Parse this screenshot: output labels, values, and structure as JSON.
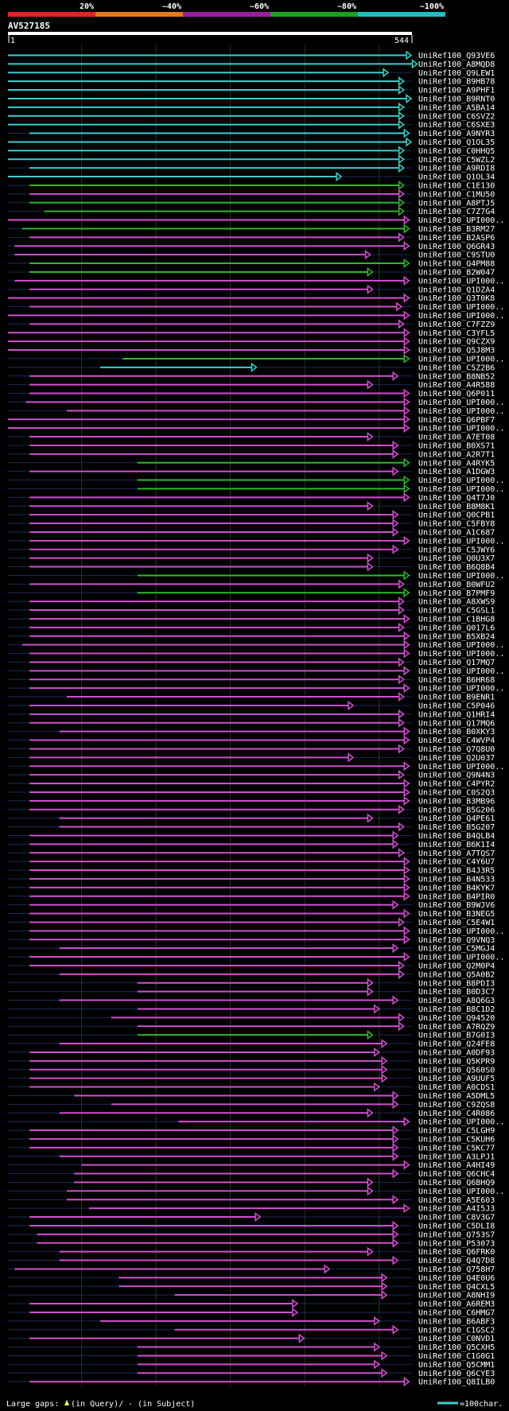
{
  "chart_data": {
    "type": "bar",
    "title": "AV527185",
    "query_length_label": "544",
    "axis_start_label": "1",
    "identity_legend": [
      {
        "label": "20%",
        "color": "#e8202a"
      },
      {
        "label": "~40%",
        "color": "#e8781e"
      },
      {
        "label": "~60%",
        "color": "#9a1e9a"
      },
      {
        "label": "~80%",
        "color": "#1ea01e"
      },
      {
        "label": "~100%",
        "color": "#1ec0c0"
      }
    ],
    "footer": {
      "gaps_label": "Large gaps:",
      "query_label": "(in Query)/",
      "subject_label": "- (in Subject)",
      "scale_label": "=100char."
    },
    "arrow_colors": {
      "magenta": "#d24fd2",
      "green": "#2db82d",
      "cyan": "#3ccfcf"
    },
    "xlim": [
      1,
      544
    ],
    "hits": [
      {
        "name": "UniRef100_Q93VE6",
        "start": 1,
        "end": 543,
        "color": "cyan"
      },
      {
        "name": "UniRef100_A8MQD8",
        "start": 1,
        "end": 551,
        "color": "cyan"
      },
      {
        "name": "UniRef100_Q9LEW1",
        "start": 1,
        "end": 512,
        "color": "cyan"
      },
      {
        "name": "UniRef100_B9HB78",
        "start": 1,
        "end": 533,
        "color": "cyan"
      },
      {
        "name": "UniRef100_A9PHF1",
        "start": 1,
        "end": 533,
        "color": "cyan"
      },
      {
        "name": "UniRef100_B9RNT0",
        "start": 1,
        "end": 543,
        "color": "cyan"
      },
      {
        "name": "UniRef100_A5BA14",
        "start": 1,
        "end": 533,
        "color": "cyan"
      },
      {
        "name": "UniRef100_C6SVZ2",
        "start": 1,
        "end": 533,
        "color": "cyan"
      },
      {
        "name": "UniRef100_C6SXE3",
        "start": 1,
        "end": 533,
        "color": "cyan"
      },
      {
        "name": "UniRef100_A9NYR3",
        "start": 30,
        "end": 540,
        "color": "cyan"
      },
      {
        "name": "UniRef100_Q1OL35",
        "start": 1,
        "end": 543,
        "color": "cyan"
      },
      {
        "name": "UniRef100_C0HHQ5",
        "start": 1,
        "end": 533,
        "color": "cyan"
      },
      {
        "name": "UniRef100_C5WZL2",
        "start": 1,
        "end": 533,
        "color": "cyan"
      },
      {
        "name": "UniRef100_A9RDI8",
        "start": 30,
        "end": 533,
        "color": "cyan"
      },
      {
        "name": "UniRef100_Q1OL34",
        "start": 1,
        "end": 449,
        "color": "cyan"
      },
      {
        "name": "UniRef100_C1E130",
        "start": 30,
        "end": 533,
        "color": "green"
      },
      {
        "name": "UniRef100_C1MU50",
        "start": 30,
        "end": 533,
        "color": "magenta"
      },
      {
        "name": "UniRef100_A8PTJ5",
        "start": 30,
        "end": 533,
        "color": "green"
      },
      {
        "name": "UniRef100_C7Z7G4",
        "start": 50,
        "end": 533,
        "color": "green"
      },
      {
        "name": "UniRef100_UPI000..",
        "start": 1,
        "end": 540,
        "color": "magenta"
      },
      {
        "name": "UniRef100_B3RM27",
        "start": 20,
        "end": 540,
        "color": "green"
      },
      {
        "name": "UniRef100_B2ASP6",
        "start": 30,
        "end": 533,
        "color": "magenta"
      },
      {
        "name": "UniRef100_Q6GR43",
        "start": 10,
        "end": 540,
        "color": "magenta"
      },
      {
        "name": "UniRef100_C9STU0",
        "start": 10,
        "end": 488,
        "color": "magenta"
      },
      {
        "name": "UniRef100_Q4PM88",
        "start": 30,
        "end": 540,
        "color": "green"
      },
      {
        "name": "UniRef100_B2W047",
        "start": 30,
        "end": 491,
        "color": "green"
      },
      {
        "name": "UniRef100_UPI000..",
        "start": 10,
        "end": 540,
        "color": "magenta"
      },
      {
        "name": "UniRef100_Q1DZA4",
        "start": 30,
        "end": 491,
        "color": "magenta"
      },
      {
        "name": "UniRef100_Q3T0K8",
        "start": 1,
        "end": 540,
        "color": "magenta"
      },
      {
        "name": "UniRef100_UPI000..",
        "start": 30,
        "end": 530,
        "color": "magenta"
      },
      {
        "name": "UniRef100_UPI000..",
        "start": 1,
        "end": 540,
        "color": "magenta"
      },
      {
        "name": "UniRef100_C7FZZ9",
        "start": 30,
        "end": 533,
        "color": "magenta"
      },
      {
        "name": "UniRef100_C3YFL5",
        "start": 1,
        "end": 540,
        "color": "magenta"
      },
      {
        "name": "UniRef100_Q9CZX9",
        "start": 1,
        "end": 540,
        "color": "magenta"
      },
      {
        "name": "UniRef100_Q5J8M3",
        "start": 1,
        "end": 540,
        "color": "magenta"
      },
      {
        "name": "UniRef100_UPI000..",
        "start": 155,
        "end": 540,
        "color": "green"
      },
      {
        "name": "UniRef100_C5Z2B6",
        "start": 125,
        "end": 335,
        "color": "cyan"
      },
      {
        "name": "UniRef100_B8NB52",
        "start": 30,
        "end": 525,
        "color": "magenta"
      },
      {
        "name": "UniRef100_A4R588",
        "start": 30,
        "end": 491,
        "color": "magenta"
      },
      {
        "name": "UniRef100_Q6P011",
        "start": 30,
        "end": 540,
        "color": "magenta"
      },
      {
        "name": "UniRef100_UPI000..",
        "start": 25,
        "end": 540,
        "color": "magenta"
      },
      {
        "name": "UniRef100_UPI000..",
        "start": 80,
        "end": 540,
        "color": "magenta"
      },
      {
        "name": "UniRef100_Q6PBF7",
        "start": 1,
        "end": 540,
        "color": "magenta"
      },
      {
        "name": "UniRef100_UPI000..",
        "start": 1,
        "end": 540,
        "color": "magenta"
      },
      {
        "name": "UniRef100_A7ET08",
        "start": 30,
        "end": 491,
        "color": "magenta"
      },
      {
        "name": "UniRef100_B0XS71",
        "start": 30,
        "end": 525,
        "color": "magenta"
      },
      {
        "name": "UniRef100_A2R7T1",
        "start": 30,
        "end": 525,
        "color": "magenta"
      },
      {
        "name": "UniRef100_A4RYK5",
        "start": 175,
        "end": 540,
        "color": "green"
      },
      {
        "name": "UniRef100_A1DGW3",
        "start": 30,
        "end": 525,
        "color": "magenta"
      },
      {
        "name": "UniRef100_UPI000..",
        "start": 175,
        "end": 540,
        "color": "green"
      },
      {
        "name": "UniRef100_UPI000..",
        "start": 175,
        "end": 540,
        "color": "green"
      },
      {
        "name": "UniRef100_Q4T7J0",
        "start": 30,
        "end": 540,
        "color": "magenta"
      },
      {
        "name": "UniRef100_B8M8K1",
        "start": 30,
        "end": 491,
        "color": "magenta"
      },
      {
        "name": "UniRef100_Q0CPB1",
        "start": 30,
        "end": 525,
        "color": "magenta"
      },
      {
        "name": "UniRef100_C5FBY8",
        "start": 30,
        "end": 525,
        "color": "magenta"
      },
      {
        "name": "UniRef100_A1C687",
        "start": 30,
        "end": 525,
        "color": "magenta"
      },
      {
        "name": "UniRef100_UPI000..",
        "start": 30,
        "end": 540,
        "color": "magenta"
      },
      {
        "name": "UniRef100_C5JWY6",
        "start": 30,
        "end": 525,
        "color": "magenta"
      },
      {
        "name": "UniRef100_Q0U3X7",
        "start": 30,
        "end": 491,
        "color": "magenta"
      },
      {
        "name": "UniRef100_B6Q8B4",
        "start": 30,
        "end": 491,
        "color": "magenta"
      },
      {
        "name": "UniRef100_UPI000..",
        "start": 175,
        "end": 540,
        "color": "green"
      },
      {
        "name": "UniRef100_B0WFU2",
        "start": 30,
        "end": 533,
        "color": "magenta"
      },
      {
        "name": "UniRef100_B7PMF9",
        "start": 175,
        "end": 540,
        "color": "green"
      },
      {
        "name": "UniRef100_A8XWS9",
        "start": 30,
        "end": 533,
        "color": "magenta"
      },
      {
        "name": "UniRef100_C5GSL1",
        "start": 30,
        "end": 533,
        "color": "magenta"
      },
      {
        "name": "UniRef100_C1BHG8",
        "start": 30,
        "end": 540,
        "color": "magenta"
      },
      {
        "name": "UniRef100_Q017L6",
        "start": 30,
        "end": 533,
        "color": "magenta"
      },
      {
        "name": "UniRef100_B5XB24",
        "start": 30,
        "end": 540,
        "color": "magenta"
      },
      {
        "name": "UniRef100_UPI000..",
        "start": 20,
        "end": 540,
        "color": "magenta"
      },
      {
        "name": "UniRef100_UPI000..",
        "start": 30,
        "end": 540,
        "color": "magenta"
      },
      {
        "name": "UniRef100_Q17MQ7",
        "start": 30,
        "end": 533,
        "color": "magenta"
      },
      {
        "name": "UniRef100_UPI000..",
        "start": 30,
        "end": 540,
        "color": "magenta"
      },
      {
        "name": "UniRef100_B6HR68",
        "start": 30,
        "end": 533,
        "color": "magenta"
      },
      {
        "name": "UniRef100_UPI000..",
        "start": 30,
        "end": 540,
        "color": "magenta"
      },
      {
        "name": "UniRef100_B9ENR1",
        "start": 80,
        "end": 533,
        "color": "magenta"
      },
      {
        "name": "UniRef100_C5P046",
        "start": 30,
        "end": 465,
        "color": "magenta"
      },
      {
        "name": "UniRef100_Q1HRI4",
        "start": 30,
        "end": 533,
        "color": "magenta"
      },
      {
        "name": "UniRef100_Q17MQ6",
        "start": 30,
        "end": 533,
        "color": "magenta"
      },
      {
        "name": "UniRef100_B0XKY3",
        "start": 70,
        "end": 540,
        "color": "magenta"
      },
      {
        "name": "UniRef100_C4WVP4",
        "start": 30,
        "end": 540,
        "color": "magenta"
      },
      {
        "name": "UniRef100_Q7Q8U0",
        "start": 30,
        "end": 533,
        "color": "magenta"
      },
      {
        "name": "UniRef100_Q2U037",
        "start": 30,
        "end": 465,
        "color": "magenta"
      },
      {
        "name": "UniRef100_UPI000..",
        "start": 30,
        "end": 540,
        "color": "magenta"
      },
      {
        "name": "UniRef100_Q9N4N3",
        "start": 30,
        "end": 533,
        "color": "magenta"
      },
      {
        "name": "UniRef100_C4PYR2",
        "start": 30,
        "end": 540,
        "color": "magenta"
      },
      {
        "name": "UniRef100_C0S2Q3",
        "start": 30,
        "end": 540,
        "color": "magenta"
      },
      {
        "name": "UniRef100_B3MB96",
        "start": 30,
        "end": 540,
        "color": "magenta"
      },
      {
        "name": "UniRef100_B5G206",
        "start": 30,
        "end": 533,
        "color": "magenta"
      },
      {
        "name": "UniRef100_Q4PE61",
        "start": 70,
        "end": 491,
        "color": "magenta"
      },
      {
        "name": "UniRef100_B5G207",
        "start": 70,
        "end": 533,
        "color": "magenta"
      },
      {
        "name": "UniRef100_B4QLB4",
        "start": 30,
        "end": 525,
        "color": "magenta"
      },
      {
        "name": "UniRef100_B6K1I4",
        "start": 30,
        "end": 525,
        "color": "magenta"
      },
      {
        "name": "UniRef100_A7TQS7",
        "start": 30,
        "end": 533,
        "color": "magenta"
      },
      {
        "name": "UniRef100_C4Y6U7",
        "start": 30,
        "end": 540,
        "color": "magenta"
      },
      {
        "name": "UniRef100_B4J3R5",
        "start": 30,
        "end": 540,
        "color": "magenta"
      },
      {
        "name": "UniRef100_B4N533",
        "start": 30,
        "end": 540,
        "color": "magenta"
      },
      {
        "name": "UniRef100_B4KYK7",
        "start": 30,
        "end": 540,
        "color": "magenta"
      },
      {
        "name": "UniRef100_B4PIR0",
        "start": 30,
        "end": 540,
        "color": "magenta"
      },
      {
        "name": "UniRef100_B9WJV6",
        "start": 30,
        "end": 525,
        "color": "magenta"
      },
      {
        "name": "UniRef100_B3NEG5",
        "start": 30,
        "end": 540,
        "color": "magenta"
      },
      {
        "name": "UniRef100_C5E4W1",
        "start": 30,
        "end": 533,
        "color": "magenta"
      },
      {
        "name": "UniRef100_UPI000..",
        "start": 30,
        "end": 540,
        "color": "magenta"
      },
      {
        "name": "UniRef100_Q9VNQ3",
        "start": 30,
        "end": 540,
        "color": "magenta"
      },
      {
        "name": "UniRef100_C5MGJ4",
        "start": 70,
        "end": 525,
        "color": "magenta"
      },
      {
        "name": "UniRef100_UPI000..",
        "start": 30,
        "end": 540,
        "color": "magenta"
      },
      {
        "name": "UniRef100_Q2M0P4",
        "start": 30,
        "end": 533,
        "color": "magenta"
      },
      {
        "name": "UniRef100_Q5A0B2",
        "start": 70,
        "end": 533,
        "color": "magenta"
      },
      {
        "name": "UniRef100_B8PDI3",
        "start": 175,
        "end": 491,
        "color": "magenta"
      },
      {
        "name": "UniRef100_B0D3C7",
        "start": 175,
        "end": 491,
        "color": "magenta"
      },
      {
        "name": "UniRef100_A8Q6G3",
        "start": 70,
        "end": 525,
        "color": "magenta"
      },
      {
        "name": "UniRef100_B8C1D2",
        "start": 175,
        "end": 500,
        "color": "magenta"
      },
      {
        "name": "UniRef100_Q94520",
        "start": 140,
        "end": 533,
        "color": "magenta"
      },
      {
        "name": "UniRef100_A7RQZ9",
        "start": 175,
        "end": 533,
        "color": "magenta"
      },
      {
        "name": "UniRef100_B7G0I3",
        "start": 175,
        "end": 491,
        "color": "green"
      },
      {
        "name": "UniRef100_Q24FE8",
        "start": 70,
        "end": 510,
        "color": "magenta"
      },
      {
        "name": "UniRef100_A0DF93",
        "start": 30,
        "end": 500,
        "color": "magenta"
      },
      {
        "name": "UniRef100_Q5KPR9",
        "start": 30,
        "end": 510,
        "color": "magenta"
      },
      {
        "name": "UniRef100_Q560S0",
        "start": 30,
        "end": 510,
        "color": "magenta"
      },
      {
        "name": "UniRef100_A9UUF5",
        "start": 30,
        "end": 510,
        "color": "magenta"
      },
      {
        "name": "UniRef100_A0CDS1",
        "start": 30,
        "end": 500,
        "color": "magenta"
      },
      {
        "name": "UniRef100_A5DML5",
        "start": 90,
        "end": 525,
        "color": "magenta"
      },
      {
        "name": "UniRef100_C9ZQS8",
        "start": 140,
        "end": 525,
        "color": "magenta"
      },
      {
        "name": "UniRef100_C4R086",
        "start": 70,
        "end": 491,
        "color": "magenta"
      },
      {
        "name": "UniRef100_UPI000..",
        "start": 230,
        "end": 540,
        "color": "magenta"
      },
      {
        "name": "UniRef100_C5LGH9",
        "start": 30,
        "end": 525,
        "color": "magenta"
      },
      {
        "name": "UniRef100_C5KUH6",
        "start": 30,
        "end": 525,
        "color": "magenta"
      },
      {
        "name": "UniRef100_C5KC77",
        "start": 30,
        "end": 525,
        "color": "magenta"
      },
      {
        "name": "UniRef100_A3LPJ1",
        "start": 70,
        "end": 525,
        "color": "magenta"
      },
      {
        "name": "UniRef100_A4HI49",
        "start": 100,
        "end": 540,
        "color": "magenta"
      },
      {
        "name": "UniRef100_Q6CHC4",
        "start": 90,
        "end": 525,
        "color": "magenta"
      },
      {
        "name": "UniRef100_Q6BHQ9",
        "start": 90,
        "end": 491,
        "color": "magenta"
      },
      {
        "name": "UniRef100_UPI000..",
        "start": 80,
        "end": 491,
        "color": "magenta"
      },
      {
        "name": "UniRef100_A5E603",
        "start": 80,
        "end": 525,
        "color": "magenta"
      },
      {
        "name": "UniRef100_A4I5J3",
        "start": 110,
        "end": 540,
        "color": "magenta"
      },
      {
        "name": "UniRef100_C8V3G7",
        "start": 30,
        "end": 340,
        "color": "magenta"
      },
      {
        "name": "UniRef100_C5DLI8",
        "start": 30,
        "end": 525,
        "color": "magenta"
      },
      {
        "name": "UniRef100_Q753S7",
        "start": 40,
        "end": 525,
        "color": "magenta"
      },
      {
        "name": "UniRef100_P53073",
        "start": 40,
        "end": 525,
        "color": "magenta"
      },
      {
        "name": "UniRef100_Q6FRK0",
        "start": 70,
        "end": 491,
        "color": "magenta"
      },
      {
        "name": "UniRef100_Q4Q7D8",
        "start": 70,
        "end": 525,
        "color": "magenta"
      },
      {
        "name": "UniRef100_Q758H7",
        "start": 10,
        "end": 433,
        "color": "magenta"
      },
      {
        "name": "UniRef100_Q4E0U6",
        "start": 150,
        "end": 510,
        "color": "magenta"
      },
      {
        "name": "UniRef100_Q4CXL5",
        "start": 150,
        "end": 510,
        "color": "magenta"
      },
      {
        "name": "UniRef100_A8NHI9",
        "start": 225,
        "end": 510,
        "color": "magenta"
      },
      {
        "name": "UniRef100_A6REM3",
        "start": 30,
        "end": 390,
        "color": "magenta"
      },
      {
        "name": "UniRef100_C6HMG7",
        "start": 30,
        "end": 390,
        "color": "magenta"
      },
      {
        "name": "UniRef100_B6ABF3",
        "start": 125,
        "end": 500,
        "color": "magenta"
      },
      {
        "name": "UniRef100_C1GSC2",
        "start": 225,
        "end": 525,
        "color": "magenta"
      },
      {
        "name": "UniRef100_C0NVD1",
        "start": 30,
        "end": 399,
        "color": "magenta"
      },
      {
        "name": "UniRef100_Q5CXH5",
        "start": 175,
        "end": 500,
        "color": "magenta"
      },
      {
        "name": "UniRef100_C1G0G1",
        "start": 175,
        "end": 510,
        "color": "magenta"
      },
      {
        "name": "UniRef100_Q5CMM1",
        "start": 175,
        "end": 500,
        "color": "magenta"
      },
      {
        "name": "UniRef100_Q6CYE3",
        "start": 175,
        "end": 510,
        "color": "magenta"
      },
      {
        "name": "UniRef100_Q8ILB0",
        "start": 30,
        "end": 540,
        "color": "magenta"
      }
    ]
  }
}
